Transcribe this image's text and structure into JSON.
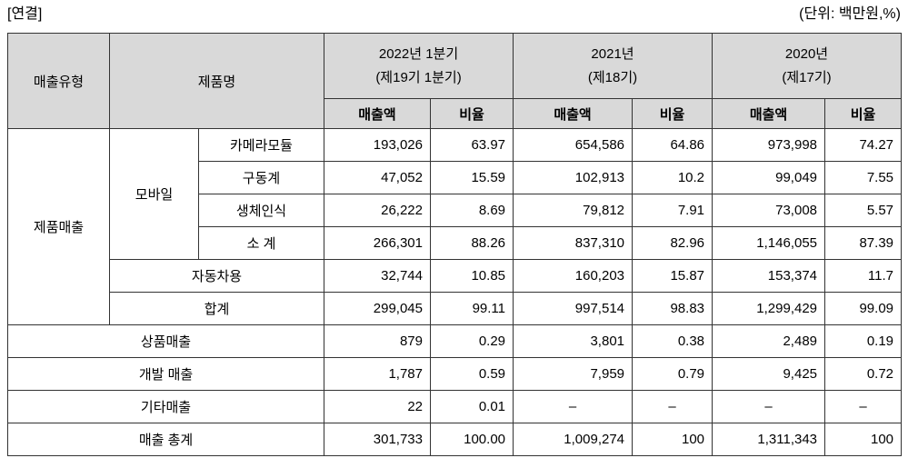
{
  "page": {
    "scope_label": "[연결]",
    "unit_label": "(단위: 백만원,%)"
  },
  "colors": {
    "header_bg": "#d9d9d9",
    "border": "#333333",
    "text": "#000000"
  },
  "table": {
    "header": {
      "sales_type": "매출유형",
      "product_name": "제품명",
      "amount_label": "매출액",
      "ratio_label": "비율",
      "periods": [
        {
          "line1": "2022년 1분기",
          "line2": "(제19기 1분기)"
        },
        {
          "line1": "2021년",
          "line2": "(제18기)"
        },
        {
          "line1": "2020년",
          "line2": "(제17기)"
        }
      ]
    },
    "rows": [
      {
        "cells": [
          {
            "text": "제품매출",
            "type": "label",
            "rowspan": 6,
            "name": "row-label-product-sales"
          },
          {
            "text": "모바일",
            "type": "label",
            "rowspan": 4,
            "name": "row-label-mobile"
          },
          {
            "text": "카메라모듈",
            "type": "label",
            "name": "row-label-camera-module"
          },
          {
            "text": "193,026",
            "type": "num"
          },
          {
            "text": "63.97",
            "type": "num"
          },
          {
            "text": "654,586",
            "type": "num"
          },
          {
            "text": "64.86",
            "type": "num"
          },
          {
            "text": "973,998",
            "type": "num"
          },
          {
            "text": "74.27",
            "type": "num"
          }
        ]
      },
      {
        "cells": [
          {
            "text": "구동계",
            "type": "label",
            "name": "row-label-actuator"
          },
          {
            "text": "47,052",
            "type": "num"
          },
          {
            "text": "15.59",
            "type": "num"
          },
          {
            "text": "102,913",
            "type": "num"
          },
          {
            "text": "10.2",
            "type": "num"
          },
          {
            "text": "99,049",
            "type": "num"
          },
          {
            "text": "7.55",
            "type": "num"
          }
        ]
      },
      {
        "cells": [
          {
            "text": "생체인식",
            "type": "label",
            "name": "row-label-biometrics"
          },
          {
            "text": "26,222",
            "type": "num"
          },
          {
            "text": "8.69",
            "type": "num"
          },
          {
            "text": "79,812",
            "type": "num"
          },
          {
            "text": "7.91",
            "type": "num"
          },
          {
            "text": "73,008",
            "type": "num"
          },
          {
            "text": "5.57",
            "type": "num"
          }
        ]
      },
      {
        "cells": [
          {
            "text": "소 계",
            "type": "label",
            "name": "row-label-subtotal"
          },
          {
            "text": "266,301",
            "type": "num"
          },
          {
            "text": "88.26",
            "type": "num"
          },
          {
            "text": "837,310",
            "type": "num"
          },
          {
            "text": "82.96",
            "type": "num"
          },
          {
            "text": "1,146,055",
            "type": "num"
          },
          {
            "text": "87.39",
            "type": "num"
          }
        ]
      },
      {
        "cells": [
          {
            "text": "자동차용",
            "type": "label",
            "colspan": 2,
            "name": "row-label-automotive"
          },
          {
            "text": "32,744",
            "type": "num"
          },
          {
            "text": "10.85",
            "type": "num"
          },
          {
            "text": "160,203",
            "type": "num"
          },
          {
            "text": "15.87",
            "type": "num"
          },
          {
            "text": "153,374",
            "type": "num"
          },
          {
            "text": "11.7",
            "type": "num"
          }
        ]
      },
      {
        "cells": [
          {
            "text": "합계",
            "type": "label",
            "colspan": 2,
            "name": "row-label-product-total"
          },
          {
            "text": "299,045",
            "type": "num"
          },
          {
            "text": "99.11",
            "type": "num"
          },
          {
            "text": "997,514",
            "type": "num"
          },
          {
            "text": "98.83",
            "type": "num"
          },
          {
            "text": "1,299,429",
            "type": "num"
          },
          {
            "text": "99.09",
            "type": "num"
          }
        ]
      },
      {
        "cells": [
          {
            "text": "상품매출",
            "type": "label",
            "colspan": 3,
            "name": "row-label-merchandise-sales"
          },
          {
            "text": "879",
            "type": "num"
          },
          {
            "text": "0.29",
            "type": "num"
          },
          {
            "text": "3,801",
            "type": "num"
          },
          {
            "text": "0.38",
            "type": "num"
          },
          {
            "text": "2,489",
            "type": "num"
          },
          {
            "text": "0.19",
            "type": "num"
          }
        ]
      },
      {
        "cells": [
          {
            "text": "개발 매출",
            "type": "label",
            "colspan": 3,
            "name": "row-label-development-sales"
          },
          {
            "text": "1,787",
            "type": "num"
          },
          {
            "text": "0.59",
            "type": "num"
          },
          {
            "text": "7,959",
            "type": "num"
          },
          {
            "text": "0.79",
            "type": "num"
          },
          {
            "text": "9,425",
            "type": "num"
          },
          {
            "text": "0.72",
            "type": "num"
          }
        ]
      },
      {
        "cells": [
          {
            "text": "기타매출",
            "type": "label",
            "colspan": 3,
            "name": "row-label-other-sales"
          },
          {
            "text": "22",
            "type": "num"
          },
          {
            "text": "0.01",
            "type": "num"
          },
          {
            "text": "–",
            "type": "dash"
          },
          {
            "text": "–",
            "type": "dash"
          },
          {
            "text": "–",
            "type": "dash"
          },
          {
            "text": "–",
            "type": "dash"
          }
        ]
      },
      {
        "cells": [
          {
            "text": "매출 총계",
            "type": "label",
            "colspan": 3,
            "name": "row-label-grand-total"
          },
          {
            "text": "301,733",
            "type": "num"
          },
          {
            "text": "100.00",
            "type": "num"
          },
          {
            "text": "1,009,274",
            "type": "num"
          },
          {
            "text": "100",
            "type": "num"
          },
          {
            "text": "1,311,343",
            "type": "num"
          },
          {
            "text": "100",
            "type": "num"
          }
        ]
      }
    ]
  }
}
